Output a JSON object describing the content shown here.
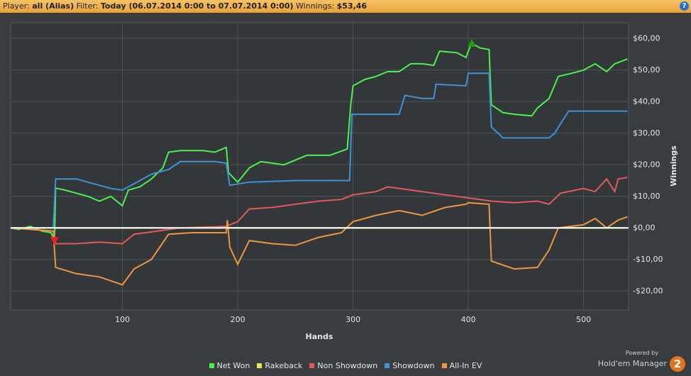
{
  "header": {
    "player_label": "Player:",
    "player": "all (Alias)",
    "filter_label": "Filter:",
    "filter": "Today (06.07.2014 0:00 to 07.07.2014 0:00)",
    "winnings_label": "Winnings:",
    "winnings": "$53,46",
    "help": "?"
  },
  "footer": {
    "powered_by": "Powered by",
    "brand": "Hold'em Manager",
    "logo": "2"
  },
  "chart_data": {
    "type": "line",
    "x_label": "Hands",
    "y_label": "Winnings",
    "xlim": [
      3,
      539
    ],
    "ylim": [
      -26,
      65
    ],
    "xticks": [
      100,
      200,
      300,
      400,
      500
    ],
    "yticks": [
      {
        "value": -20,
        "label": "-$20,00"
      },
      {
        "value": -10,
        "label": "-$10,00"
      },
      {
        "value": 0,
        "label": "$0,00"
      },
      {
        "value": 10,
        "label": "$10,00"
      },
      {
        "value": 20,
        "label": "$20,00"
      },
      {
        "value": 30,
        "label": "$30,00"
      },
      {
        "value": 40,
        "label": "$40,00"
      },
      {
        "value": 50,
        "label": "$50,00"
      },
      {
        "value": 60,
        "label": "$60,00"
      }
    ],
    "grid": true,
    "series": [
      {
        "name": "Net Won",
        "color": "#4cf04c",
        "x": [
          3,
          10,
          20,
          30,
          38,
          41,
          42,
          50,
          60,
          70,
          80,
          90,
          100,
          105,
          115,
          125,
          135,
          140,
          150,
          170,
          180,
          190,
          192,
          200,
          210,
          220,
          240,
          260,
          280,
          295,
          298,
          300,
          310,
          320,
          330,
          340,
          350,
          360,
          370,
          375,
          390,
          398,
          400,
          403,
          410,
          418,
          420,
          430,
          440,
          455,
          460,
          470,
          478,
          490,
          500,
          510,
          520,
          527,
          538
        ],
        "values": [
          0,
          -0.5,
          0.5,
          -1,
          -1.5,
          -4,
          12.6,
          12,
          11,
          10,
          8.5,
          10,
          7,
          12,
          13,
          15.5,
          19,
          24,
          24.5,
          24.5,
          24,
          25.5,
          17.5,
          14.5,
          19,
          21,
          20,
          23,
          23,
          25,
          39,
          45,
          47,
          48,
          49.5,
          49.5,
          52,
          52,
          51.5,
          56,
          55.5,
          54,
          56,
          58.5,
          57,
          56.5,
          39,
          36.5,
          36,
          35.5,
          38,
          41,
          48,
          49,
          50,
          52,
          49.5,
          52,
          53.5
        ]
      },
      {
        "name": "Rakeback",
        "color": "#e8e84a",
        "x": [
          3,
          538
        ],
        "values": [
          0,
          0
        ]
      },
      {
        "name": "Non Showdown",
        "color": "#e05a5a",
        "x": [
          3,
          40,
          42,
          60,
          80,
          100,
          110,
          130,
          150,
          190,
          200,
          210,
          230,
          250,
          270,
          290,
          300,
          320,
          330,
          350,
          360,
          380,
          400,
          420,
          440,
          460,
          470,
          480,
          500,
          510,
          520,
          527,
          530,
          538
        ],
        "values": [
          0,
          -1,
          -5,
          -5,
          -4.5,
          -5,
          -2,
          -1,
          0,
          0.5,
          2,
          6,
          6.5,
          7.5,
          8.5,
          9,
          10.5,
          11.5,
          13,
          12,
          11.5,
          10.5,
          9.5,
          8.5,
          8,
          8.5,
          7.5,
          11,
          12.5,
          11.5,
          15.5,
          11.5,
          15.5,
          16
        ]
      },
      {
        "name": "Showdown",
        "color": "#3d92da",
        "x": [
          3,
          40,
          42,
          60,
          70,
          80,
          90,
          100,
          110,
          125,
          140,
          150,
          180,
          190,
          193,
          210,
          250,
          297,
          299,
          340,
          345,
          360,
          370,
          372,
          398,
          400,
          418,
          420,
          430,
          470,
          475,
          480,
          487,
          538
        ],
        "values": [
          0,
          0,
          15.5,
          15.5,
          14.5,
          13.5,
          12.5,
          12,
          14,
          17,
          18.5,
          21,
          21,
          20.5,
          13.5,
          14.5,
          15,
          15,
          36,
          36,
          42,
          41,
          41,
          45.5,
          45,
          49,
          49,
          32,
          28.5,
          28.5,
          30,
          33,
          37,
          37
        ]
      },
      {
        "name": "All-In EV",
        "color": "#ec9640",
        "x": [
          3,
          40,
          42,
          60,
          80,
          100,
          110,
          125,
          140,
          160,
          190,
          191,
          193,
          200,
          210,
          230,
          250,
          270,
          290,
          300,
          320,
          340,
          360,
          380,
          398,
          400,
          418,
          420,
          440,
          460,
          470,
          478,
          500,
          510,
          520,
          530,
          538
        ],
        "values": [
          0,
          -1,
          -12.5,
          -14.5,
          -15.5,
          -18,
          -13,
          -10,
          -2,
          -1.5,
          -1.5,
          2.5,
          -6,
          -11.5,
          -4,
          -5,
          -5.5,
          -3,
          -1.5,
          2,
          4,
          5.5,
          4,
          6.5,
          7.5,
          8,
          7.5,
          -10.5,
          -13,
          -12.5,
          -7,
          0,
          1,
          3,
          0,
          2.5,
          3.5
        ]
      }
    ],
    "markers": [
      {
        "x": 403,
        "y": 58.5,
        "shape": "up",
        "color": "#1e9a1e"
      },
      {
        "x": 41,
        "y": -4,
        "shape": "down",
        "color": "#ee1c1c"
      }
    ]
  }
}
